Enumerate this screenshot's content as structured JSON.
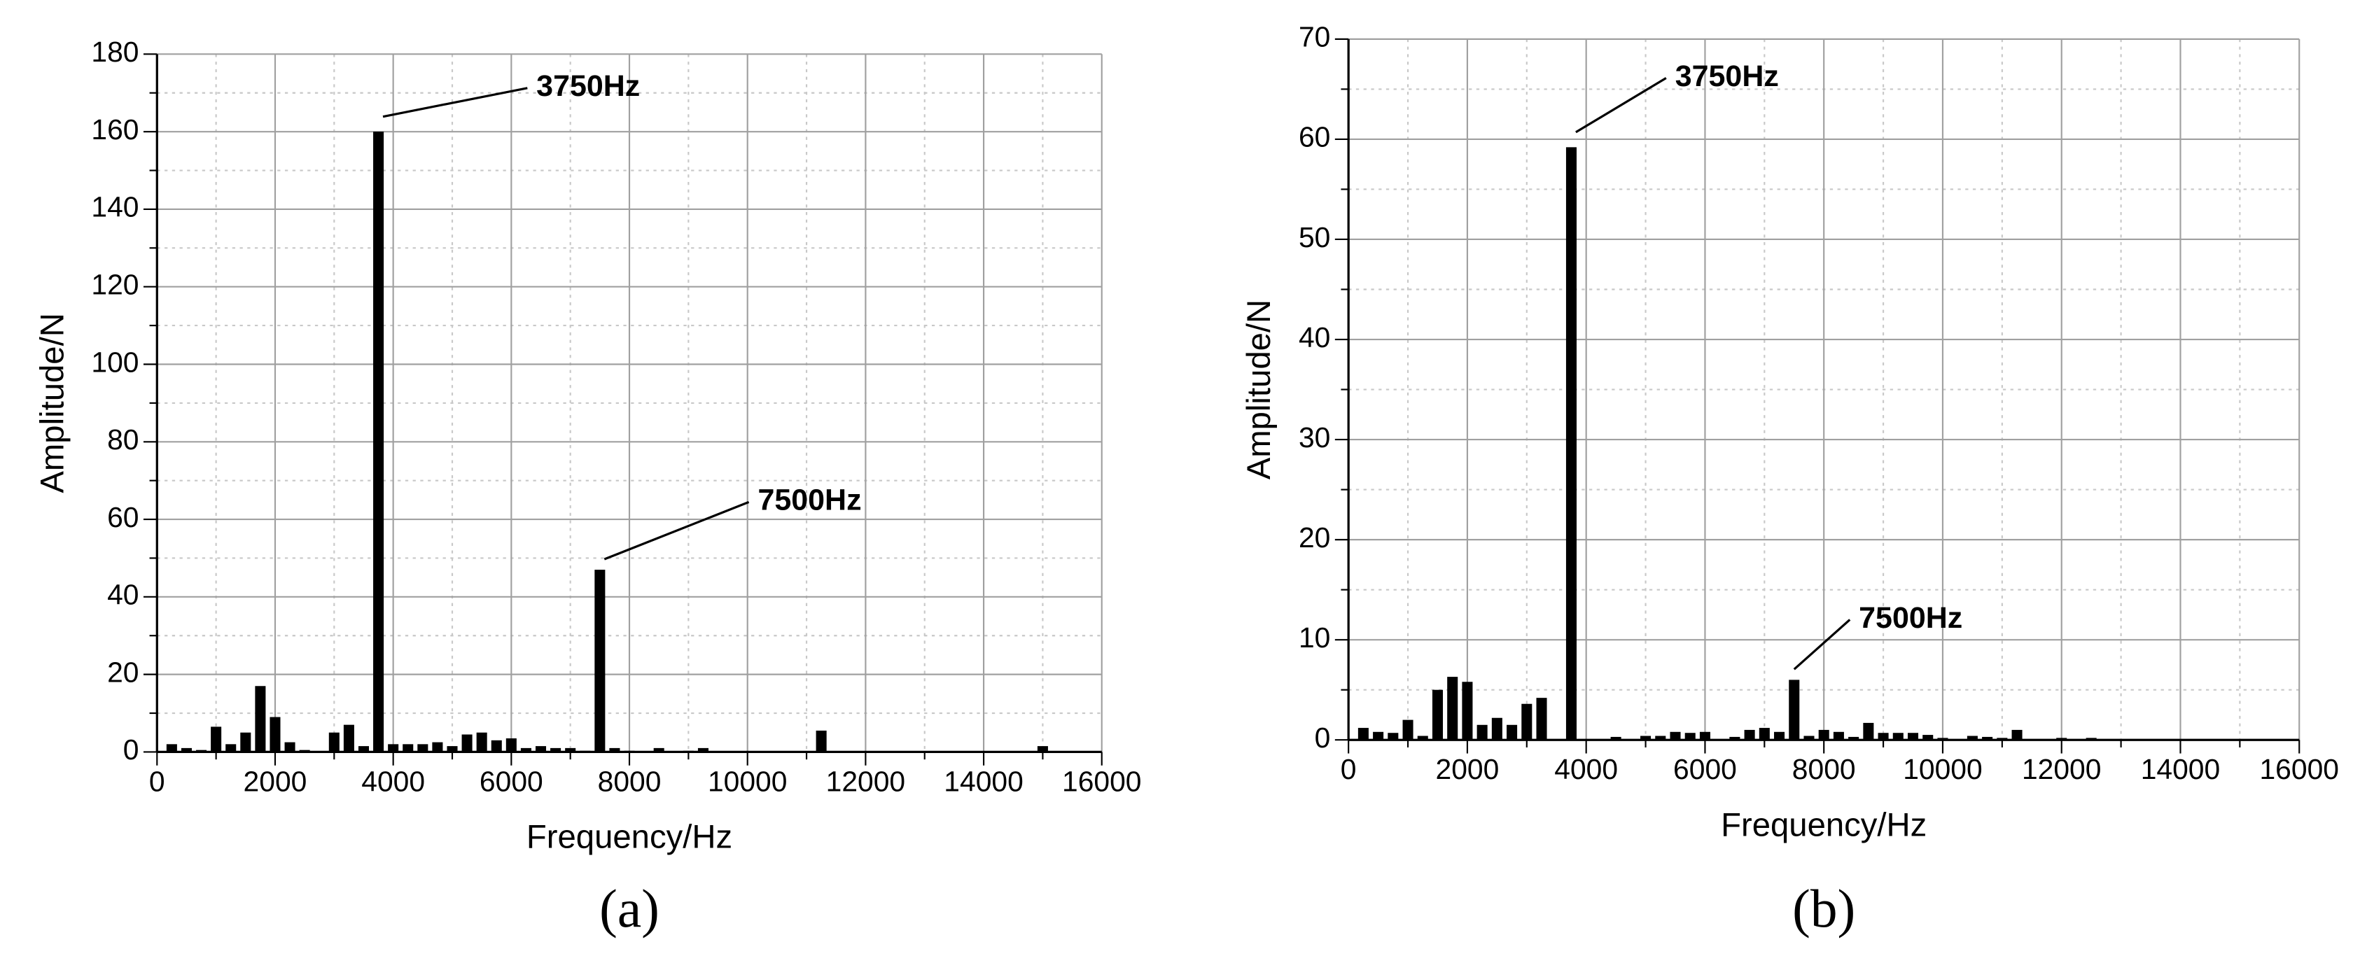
{
  "chart_data": [
    {
      "type": "bar",
      "label": "(a)",
      "x_label": "Frequency/Hz",
      "y_label": "Amplitude/N",
      "color": "#000000",
      "x": [
        250,
        500,
        750,
        1000,
        1250,
        1500,
        1750,
        2000,
        2250,
        2500,
        3000,
        3250,
        3500,
        3750,
        4000,
        4250,
        4500,
        4750,
        5000,
        5250,
        5500,
        5750,
        6000,
        6250,
        6500,
        6750,
        7000,
        7250,
        7500,
        7750,
        8000,
        8500,
        9000,
        9250,
        11250,
        15000
      ],
      "values": [
        2,
        1,
        0.5,
        6.5,
        2,
        5,
        17,
        9,
        2.5,
        0.5,
        5,
        7,
        1.5,
        160,
        2,
        2,
        2,
        2.5,
        1.5,
        4.5,
        5,
        3,
        3.5,
        1,
        1.5,
        1,
        1,
        0.3,
        47,
        1,
        0.3,
        1,
        0.3,
        1,
        5.5,
        1.5
      ],
      "xlim": [
        0,
        16000
      ],
      "xticks": [
        0,
        2000,
        4000,
        6000,
        8000,
        10000,
        12000,
        14000,
        16000
      ],
      "ylim": [
        0,
        180
      ],
      "yticks": [
        0,
        20,
        40,
        60,
        80,
        100,
        120,
        140,
        160,
        180
      ],
      "grid": true,
      "minor_grid": true,
      "annotations": [
        {
          "text": "3750Hz",
          "x": 3750
        },
        {
          "text": "7500Hz",
          "x": 7500
        }
      ]
    },
    {
      "type": "bar",
      "label": "(b)",
      "x_label": "Frequency/Hz",
      "y_label": "Amplitude/N",
      "color": "#000000",
      "x": [
        250,
        500,
        750,
        1000,
        1250,
        1500,
        1750,
        2000,
        2250,
        2500,
        2750,
        3000,
        3250,
        3750,
        4500,
        5000,
        5250,
        5500,
        5750,
        6000,
        6500,
        6750,
        7000,
        7250,
        7500,
        7750,
        8000,
        8250,
        8500,
        8750,
        9000,
        9250,
        9500,
        9750,
        10000,
        10500,
        10750,
        11000,
        11250,
        12000,
        12500
      ],
      "values": [
        1.2,
        0.8,
        0.7,
        2,
        0.4,
        5,
        6.3,
        5.8,
        1.5,
        2.2,
        1.5,
        3.6,
        4.2,
        59.2,
        0.3,
        0.4,
        0.4,
        0.8,
        0.7,
        0.8,
        0.3,
        1,
        1.2,
        0.8,
        6,
        0.4,
        1,
        0.8,
        0.3,
        1.7,
        0.7,
        0.7,
        0.7,
        0.5,
        0.2,
        0.4,
        0.3,
        0.2,
        1,
        0.2,
        0.2
      ],
      "xlim": [
        0,
        16000
      ],
      "xticks": [
        0,
        2000,
        4000,
        6000,
        8000,
        10000,
        12000,
        14000,
        16000
      ],
      "ylim": [
        0,
        70
      ],
      "yticks": [
        0,
        10,
        20,
        30,
        40,
        50,
        60,
        70
      ],
      "grid": true,
      "minor_grid": true,
      "annotations": [
        {
          "text": "3750Hz",
          "x": 3750
        },
        {
          "text": "7500Hz",
          "x": 7500
        }
      ]
    }
  ]
}
